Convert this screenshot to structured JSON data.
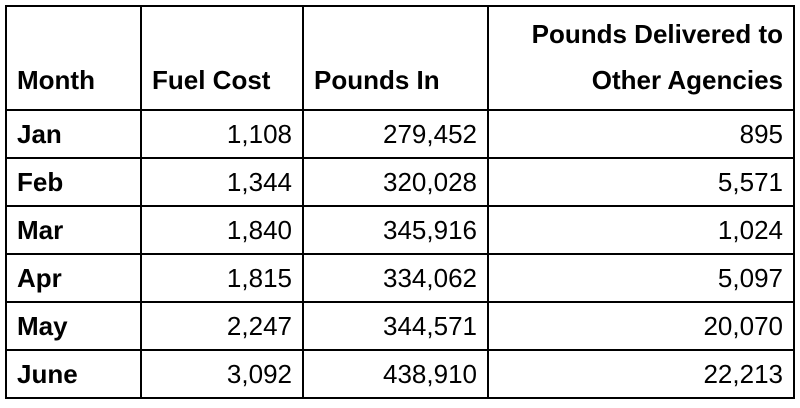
{
  "table": {
    "header": [
      "Month",
      "Fuel Cost",
      "Pounds In",
      "Pounds Delivered to Other Agencies"
    ],
    "rows": [
      [
        "Jan",
        "1,108",
        "279,452",
        "895"
      ],
      [
        "Feb",
        "1,344",
        "320,028",
        "5,571"
      ],
      [
        "Mar",
        "1,840",
        "345,916",
        "1,024"
      ],
      [
        "Apr",
        "1,815",
        "334,062",
        "5,097"
      ],
      [
        "May",
        "2,247",
        "344,571",
        "20,070"
      ],
      [
        "June",
        "3,092",
        "438,910",
        "22,213"
      ]
    ]
  }
}
